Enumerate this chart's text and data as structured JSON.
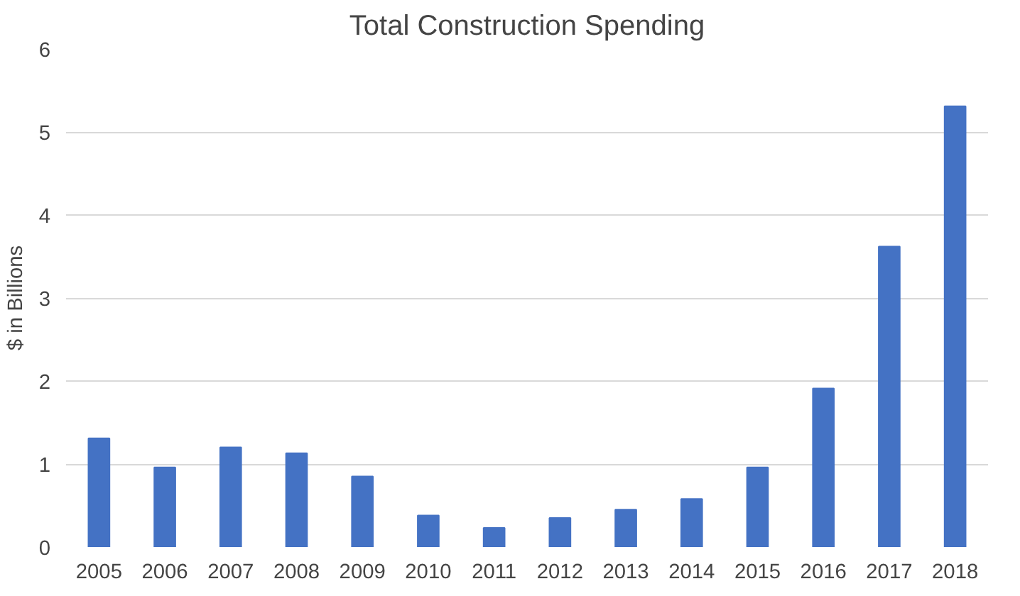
{
  "chart_data": {
    "type": "bar",
    "title": "Total Construction Spending",
    "ylabel": "$ in Billions",
    "categories": [
      "2005",
      "2006",
      "2007",
      "2008",
      "2009",
      "2010",
      "2011",
      "2012",
      "2013",
      "2014",
      "2015",
      "2016",
      "2017",
      "2018"
    ],
    "values": [
      1.31,
      0.96,
      1.2,
      1.13,
      0.85,
      0.38,
      0.23,
      0.35,
      0.45,
      0.58,
      0.96,
      1.91,
      3.62,
      5.31
    ],
    "color": "#4472c4",
    "ylim": [
      0,
      6
    ],
    "yticks": [
      0,
      1,
      2,
      3,
      4,
      5,
      6
    ],
    "grid": "y"
  }
}
